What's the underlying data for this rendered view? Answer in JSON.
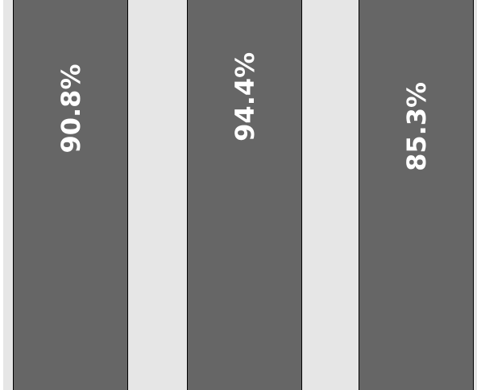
{
  "colors": {
    "background": "#e6e6e6",
    "track": "#ebebeb",
    "fill": "#666666",
    "outline": "#000000",
    "label": "#ffffff"
  },
  "chart_data": {
    "type": "bar",
    "orientation": "vertical",
    "style": "progress-bars",
    "ylim": [
      0,
      100
    ],
    "grid": false,
    "values": [
      90.8,
      94.4,
      85.3
    ],
    "labels": [
      "90.8%",
      "94.4%",
      "85.3%"
    ]
  }
}
